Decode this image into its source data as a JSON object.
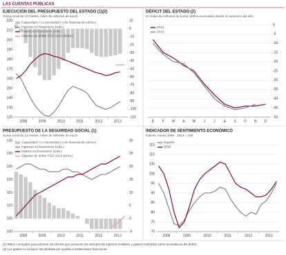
{
  "header": {
    "title": "LAS CUENTAS PÚBLICAS"
  },
  "chart_data": [
    {
      "type": "bar-line",
      "title": "EJECUCIÓN DEL PRESUPUESTO DEL ESTADO (1)(2)",
      "subtitle": "Suma móvil de 12 meses, miles de millones de euros",
      "categories": [
        "2008",
        null,
        null,
        null,
        "2009",
        null,
        null,
        null,
        "2010",
        null,
        null,
        null,
        "2011",
        null,
        null,
        null,
        "2012",
        null,
        null,
        null,
        "2013",
        null,
        null,
        null
      ],
      "ylim": [
        120,
        220
      ],
      "yticks": [
        120,
        130,
        140,
        150,
        160,
        170,
        180,
        190,
        200,
        210,
        220
      ],
      "y2lim": [
        -110,
        10
      ],
      "y2ticks": [
        -110,
        -100,
        -90,
        -80,
        -70,
        -60,
        -50,
        -40,
        -30,
        -20,
        -10,
        0,
        10
      ],
      "series": [
        {
          "name": "Capacidad (+) o necesidad (-) de financiación (dcha.)",
          "kind": "bar",
          "axis": "y2",
          "color": "#c9c9c9",
          "values": [
            5,
            -3,
            -18,
            -35,
            -48,
            -58,
            -64,
            -64,
            -58,
            -50,
            -40,
            -30,
            -24,
            -24,
            -24,
            -25,
            -30,
            -34,
            -35,
            -35,
            -34,
            -33,
            -31,
            null
          ]
        },
        {
          "name": "Ingresos no financieros (izda.)",
          "kind": "line",
          "color": "#8c8c8c",
          "values": [
            165,
            160,
            150,
            140,
            132,
            126,
            122,
            121,
            125,
            132,
            140,
            148,
            152,
            150,
            148,
            145,
            138,
            132,
            130,
            128,
            130,
            133,
            136,
            null
          ]
        },
        {
          "name": "Gastos no financieros (izda.)",
          "kind": "line",
          "color": "#8b1a3c",
          "values": [
            160,
            163,
            168,
            175,
            180,
            184,
            186,
            185,
            183,
            182,
            180,
            178,
            176,
            174,
            172,
            170,
            168,
            166,
            165,
            163,
            164,
            166,
            167,
            null
          ]
        },
        {
          "name": "Objetivo de déficit PGE-2013 (dcha.)",
          "kind": "line",
          "axis": "y2",
          "color": "#e8a0b8",
          "values": [
            null,
            null,
            null,
            null,
            null,
            null,
            null,
            null,
            null,
            null,
            null,
            null,
            null,
            null,
            null,
            null,
            null,
            null,
            null,
            null,
            null,
            -45,
            -45,
            -45
          ]
        }
      ]
    },
    {
      "type": "line",
      "title": "DÉFICIT DEL ESTADO (2)",
      "subtitle": "En miles de millones de euros, déficit acumulado desde el comienzo del año",
      "categories": [
        "E",
        "F",
        "M",
        "A",
        "M",
        "J",
        "J",
        "A",
        "S",
        "O",
        "N",
        "D"
      ],
      "ylim": [
        -50,
        0
      ],
      "yticks": [
        -50,
        -45,
        -40,
        -35,
        -30,
        -25,
        -20,
        -15,
        -10,
        -5,
        0
      ],
      "grid": true,
      "series": [
        {
          "name": "2012",
          "kind": "line",
          "color": "#8b1a3c",
          "values": [
            -8,
            -15,
            -18,
            -22,
            -25,
            -32,
            -38,
            -43,
            -45,
            -44,
            -44,
            -43
          ]
        },
        {
          "name": "2013",
          "kind": "line",
          "color": "#8c8c8c",
          "values": [
            -10,
            -16,
            -20,
            -21,
            -26,
            -33,
            -40,
            -44,
            -46,
            -45,
            -43,
            null
          ]
        }
      ]
    },
    {
      "type": "bar-line",
      "title": "PRESUPUESTO DE LA SEGURIDAD SOCIAL (1)",
      "subtitle": "Suma móvil de 12 meses, miles de millones de euros",
      "categories": [
        "2008",
        null,
        null,
        null,
        "2009",
        null,
        null,
        null,
        "2010",
        null,
        null,
        null,
        "2011",
        null,
        null,
        null,
        "2012",
        null,
        null,
        null,
        "2013",
        null,
        null,
        null
      ],
      "ylim": [
        100,
        135
      ],
      "yticks": [
        100,
        105,
        110,
        115,
        120,
        125,
        130,
        135
      ],
      "y2lim": [
        -5,
        30
      ],
      "y2ticks": [
        -5,
        0,
        5,
        10,
        15,
        20,
        25,
        30
      ],
      "series": [
        {
          "name": "Capacidad (+) o necesidad (-) de financiación (dcha.)",
          "kind": "bar",
          "axis": "y2",
          "color": "#c9c9c9",
          "values": [
            18,
            17,
            16,
            14,
            11,
            9,
            8,
            6,
            5,
            4,
            4,
            3,
            2,
            1,
            0,
            -2,
            -4,
            -4,
            -4,
            -4,
            -4,
            -4,
            -4,
            null
          ]
        },
        {
          "name": "Ingresos no financieros (izda.)",
          "kind": "line",
          "color": "#8c8c8c",
          "values": [
            124,
            125,
            126,
            126,
            125,
            124,
            124,
            123,
            123,
            123,
            124,
            124,
            123,
            123,
            122,
            121,
            120,
            121,
            122,
            122,
            123,
            124,
            125,
            null
          ]
        },
        {
          "name": "Gastos no financieros (izda.)",
          "kind": "line",
          "color": "#8b1a3c",
          "values": [
            106,
            108,
            110,
            112,
            114,
            115,
            116,
            117,
            118,
            119,
            120,
            121,
            121,
            122,
            122,
            123,
            124,
            125,
            126,
            126,
            127,
            128,
            129,
            null
          ]
        },
        {
          "name": "Objetivo de déficit PGE-2013 (dcha.)",
          "kind": "line",
          "axis": "y2",
          "color": "#e8a0b8",
          "values": [
            null,
            null,
            null,
            null,
            null,
            null,
            null,
            null,
            null,
            null,
            null,
            null,
            null,
            null,
            null,
            null,
            null,
            null,
            null,
            null,
            -4,
            -2,
            -1,
            1
          ]
        }
      ]
    },
    {
      "type": "line",
      "title": "INDICADOR DE SENTIMIENTO ECONÓMICO",
      "subtitle": "Índices, media 1990 - 2013 = 100",
      "categories": [
        "2008",
        null,
        null,
        null,
        "2009",
        null,
        null,
        null,
        "2010",
        null,
        null,
        null,
        "2011",
        null,
        null,
        null,
        "2012",
        null,
        null,
        null,
        "2013",
        null,
        null,
        null
      ],
      "ylim": [
        70,
        115
      ],
      "yticks": [
        70,
        75,
        80,
        85,
        90,
        95,
        100,
        105,
        110,
        115
      ],
      "grid": true,
      "series": [
        {
          "name": "España",
          "kind": "line",
          "color": "#8c8c8c",
          "values": [
            95,
            90,
            82,
            74,
            73,
            76,
            81,
            85,
            88,
            90,
            90,
            91,
            93,
            92,
            87,
            83,
            80,
            78,
            80,
            79,
            84,
            86,
            90,
            95
          ]
        },
        {
          "name": "UEM",
          "kind": "line",
          "color": "#8b1a3c",
          "values": [
            104,
            100,
            92,
            80,
            72,
            75,
            83,
            92,
            97,
            100,
            102,
            104,
            106,
            105,
            100,
            95,
            93,
            92,
            90,
            88,
            88,
            89,
            92,
            96
          ]
        }
      ]
    }
  ],
  "notes": [
    "(1) Datos corregidos para eliminar los efectos que provocan los anticipos de ingresos recibidos y gastos realizados sobre la tendencia del déficit.",
    "(2) Los gastos no incluyen las pérdidas por ayudas a instituciones financieras"
  ]
}
